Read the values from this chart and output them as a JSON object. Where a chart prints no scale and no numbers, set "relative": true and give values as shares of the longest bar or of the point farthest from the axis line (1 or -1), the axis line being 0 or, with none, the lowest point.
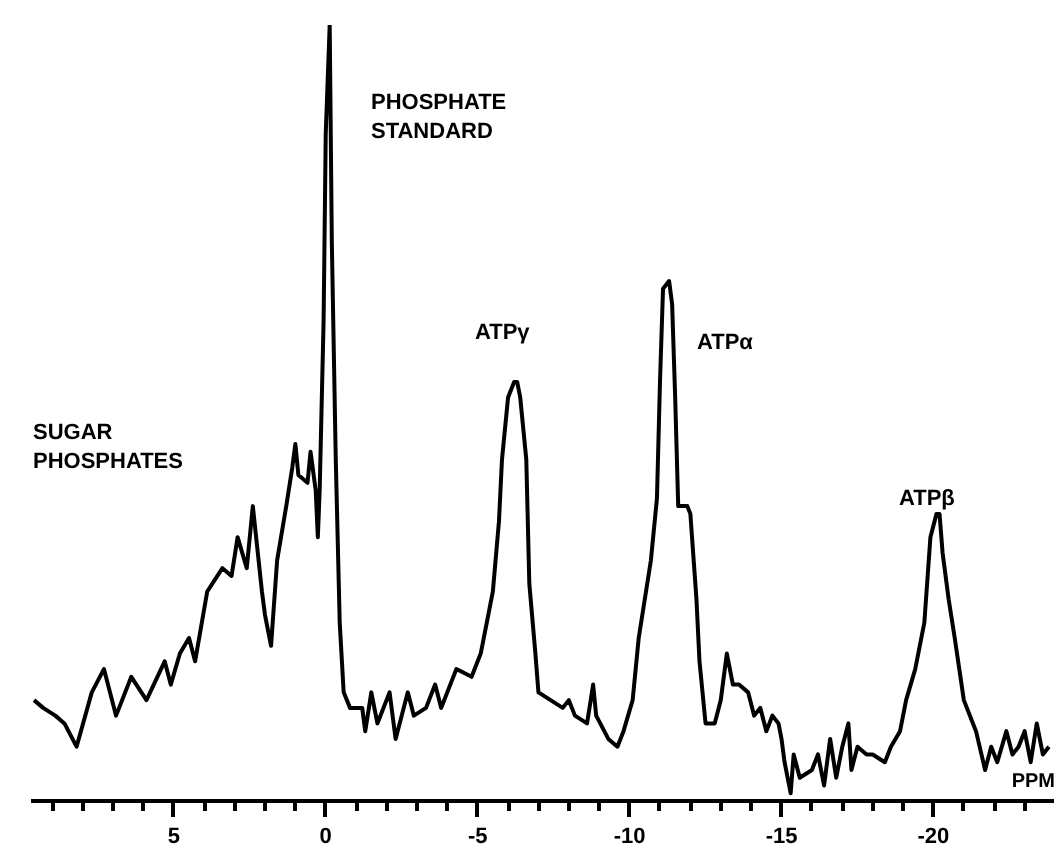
{
  "chart_data": {
    "type": "line",
    "relative": true,
    "xlabel": "PPM",
    "color": "#000000",
    "xlim": [
      9.7,
      -24
    ],
    "xticks": [
      {
        "value": 9,
        "label": null
      },
      {
        "value": 8,
        "label": null
      },
      {
        "value": 7,
        "label": null
      },
      {
        "value": 6,
        "label": null
      },
      5,
      {
        "value": 4,
        "label": null
      },
      {
        "value": 3,
        "label": null
      },
      {
        "value": 2,
        "label": null
      },
      {
        "value": 1,
        "label": null
      },
      0,
      {
        "value": -1,
        "label": null
      },
      {
        "value": -2,
        "label": null
      },
      {
        "value": -3,
        "label": null
      },
      {
        "value": -4,
        "label": null
      },
      -5,
      {
        "value": -6,
        "label": null
      },
      {
        "value": -7,
        "label": null
      },
      {
        "value": -8,
        "label": null
      },
      {
        "value": -9,
        "label": null
      },
      -10,
      {
        "value": -11,
        "label": null
      },
      {
        "value": -12,
        "label": null
      },
      {
        "value": -13,
        "label": null
      },
      {
        "value": -14,
        "label": null
      },
      -15,
      {
        "value": -16,
        "label": null
      },
      {
        "value": -17,
        "label": null
      },
      {
        "value": -18,
        "label": null
      },
      {
        "value": -19,
        "label": null
      },
      -20,
      {
        "value": -21,
        "label": null
      },
      {
        "value": -22,
        "label": null
      },
      {
        "value": -23,
        "label": null
      }
    ],
    "x": [
      9.6,
      9.3,
      8.9,
      8.6,
      8.2,
      7.7,
      7.3,
      6.9,
      6.4,
      5.9,
      5.3,
      5.1,
      4.8,
      4.5,
      4.3,
      3.9,
      3.4,
      3.1,
      2.9,
      2.6,
      2.4,
      2.1,
      2.0,
      1.8,
      1.6,
      1.3,
      1.1,
      1.0,
      0.9,
      0.6,
      0.5,
      0.33,
      0.26,
      0.2,
      0.07,
      0.0,
      -0.13,
      -0.2,
      -0.33,
      -0.46,
      -0.59,
      -0.8,
      -1.2,
      -1.3,
      -1.5,
      -1.7,
      -2.1,
      -2.3,
      -2.7,
      -2.9,
      -3.3,
      -3.6,
      -3.8,
      -4.3,
      -4.8,
      -5.1,
      -5.3,
      -5.5,
      -5.7,
      -5.8,
      -6.0,
      -6.2,
      -6.3,
      -6.4,
      -6.6,
      -6.7,
      -6.9,
      -7.0,
      -7.4,
      -7.8,
      -8.0,
      -8.2,
      -8.6,
      -8.8,
      -8.9,
      -9.3,
      -9.6,
      -9.8,
      -10.1,
      -10.3,
      -10.5,
      -10.7,
      -10.9,
      -11.0,
      -11.1,
      -11.3,
      -11.4,
      -11.5,
      -11.6,
      -11.9,
      -12.0,
      -12.2,
      -12.3,
      -12.5,
      -12.8,
      -13.0,
      -13.2,
      -13.4,
      -13.6,
      -13.9,
      -14.1,
      -14.3,
      -14.5,
      -14.7,
      -14.9,
      -15.0,
      -15.1,
      -15.3,
      -15.4,
      -15.6,
      -16.0,
      -16.2,
      -16.4,
      -16.6,
      -16.8,
      -17.0,
      -17.2,
      -17.3,
      -17.5,
      -17.8,
      -18.0,
      -18.4,
      -18.6,
      -18.9,
      -19.1,
      -19.4,
      -19.7,
      -19.9,
      -20.1,
      -20.2,
      -20.3,
      -20.5,
      -20.7,
      -21.0,
      -21.3,
      -21.4,
      -21.7,
      -21.9,
      -22.1,
      -22.4,
      -22.6,
      -22.8,
      -23.0,
      -23.2,
      -23.4,
      -23.6,
      -23.8
    ],
    "values": [
      0.13,
      0.12,
      0.11,
      0.1,
      0.07,
      0.14,
      0.17,
      0.11,
      0.16,
      0.13,
      0.18,
      0.15,
      0.19,
      0.21,
      0.18,
      0.27,
      0.3,
      0.29,
      0.34,
      0.3,
      0.38,
      0.27,
      0.24,
      0.2,
      0.31,
      0.38,
      0.43,
      0.46,
      0.42,
      0.41,
      0.45,
      0.4,
      0.34,
      0.4,
      0.62,
      0.86,
      1.0,
      0.72,
      0.44,
      0.23,
      0.14,
      0.12,
      0.12,
      0.09,
      0.14,
      0.1,
      0.14,
      0.08,
      0.14,
      0.11,
      0.12,
      0.15,
      0.12,
      0.17,
      0.16,
      0.19,
      0.23,
      0.27,
      0.36,
      0.44,
      0.52,
      0.54,
      0.54,
      0.52,
      0.44,
      0.28,
      0.19,
      0.14,
      0.13,
      0.12,
      0.13,
      0.11,
      0.1,
      0.15,
      0.11,
      0.08,
      0.07,
      0.09,
      0.13,
      0.21,
      0.26,
      0.31,
      0.39,
      0.54,
      0.66,
      0.67,
      0.64,
      0.52,
      0.38,
      0.38,
      0.37,
      0.26,
      0.18,
      0.1,
      0.1,
      0.13,
      0.19,
      0.15,
      0.15,
      0.14,
      0.11,
      0.12,
      0.09,
      0.11,
      0.1,
      0.08,
      0.05,
      0.01,
      0.06,
      0.03,
      0.04,
      0.06,
      0.02,
      0.08,
      0.03,
      0.07,
      0.1,
      0.04,
      0.07,
      0.06,
      0.06,
      0.05,
      0.07,
      0.09,
      0.13,
      0.17,
      0.23,
      0.34,
      0.37,
      0.37,
      0.32,
      0.26,
      0.21,
      0.13,
      0.1,
      0.09,
      0.04,
      0.07,
      0.05,
      0.09,
      0.06,
      0.07,
      0.09,
      0.05,
      0.1,
      0.06,
      0.07
    ],
    "annotations": [
      "SUGAR\nPHOSPHATES",
      "PHOSPHATE\nSTANDARD",
      "ATPγ",
      "ATPα",
      "ATPβ"
    ],
    "grid": false
  }
}
